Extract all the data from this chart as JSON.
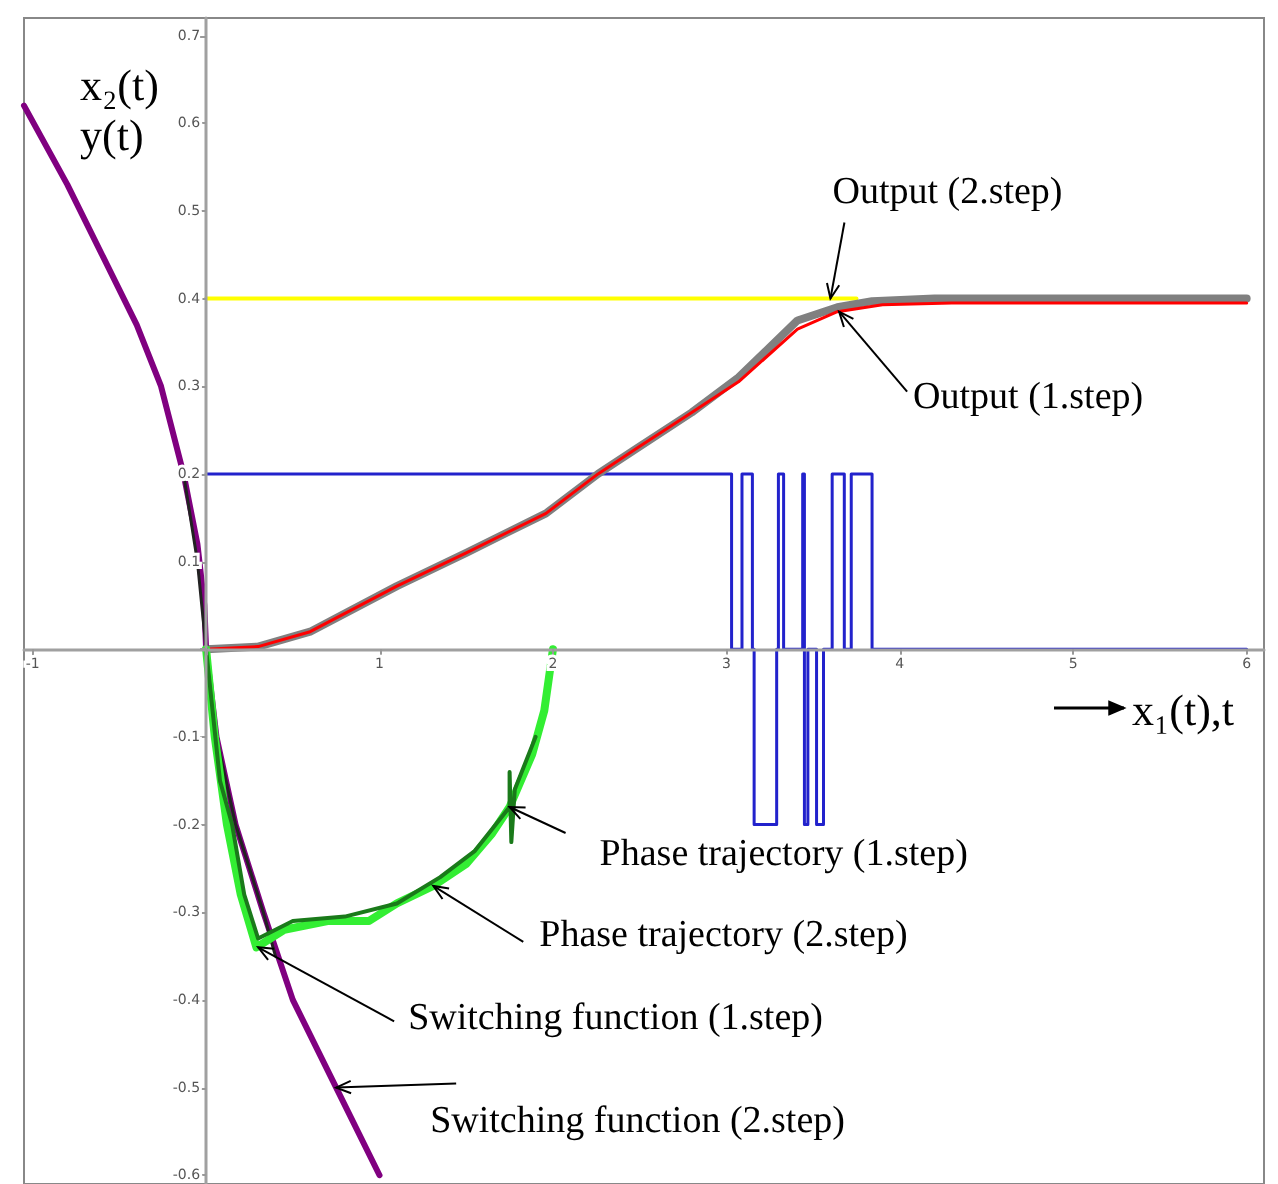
{
  "chart_data": {
    "type": "line",
    "xlabel": "x₁(t),t",
    "ylabel": "x₂(t)\ny(t)",
    "xlim": [
      -1.05,
      6.1
    ],
    "ylim": [
      -0.61,
      0.72
    ],
    "xticks": [
      -1,
      {
        "value": 0,
        "label": null
      },
      1,
      2,
      3,
      4,
      5,
      6
    ],
    "yticks": [
      -0.6,
      -0.5,
      -0.4,
      -0.3,
      -0.2,
      -0.1,
      {
        "value": 0,
        "label": null
      },
      0.1,
      0.2,
      0.3,
      0.4,
      0.5,
      0.6,
      0.7
    ],
    "marker": "none",
    "series": [
      {
        "color": "#ffff00",
        "x": [
          0,
          3.75
        ],
        "values": [
          0.4,
          0.4
        ]
      },
      {
        "color": "#2222cc",
        "x": [
          0,
          3.03,
          3.03,
          3.09,
          3.09,
          3.15,
          3.15,
          3.16,
          3.16,
          3.29,
          3.29,
          3.3,
          3.3,
          3.33,
          3.33,
          3.44,
          3.44,
          3.45,
          3.45,
          3.47,
          3.47,
          3.52,
          3.52,
          3.56,
          3.56,
          3.61,
          3.61,
          3.68,
          3.68,
          3.72,
          3.72,
          3.84,
          3.84,
          6
        ],
        "values": [
          0.2,
          0.2,
          0,
          0,
          0.2,
          0.2,
          0,
          0,
          -0.2,
          -0.2,
          0,
          0,
          0.2,
          0.2,
          0,
          0,
          0.2,
          0.2,
          -0.2,
          -0.2,
          0,
          0,
          -0.2,
          -0.2,
          0,
          0,
          0.2,
          0.2,
          0,
          0,
          0.2,
          0.2,
          0,
          0
        ]
      },
      {
        "color": "#808080",
        "x": [
          0,
          0.3,
          0.6,
          1.1,
          1.5,
          1.96,
          2.26,
          2.49,
          2.8,
          3.07,
          3.41,
          3.64,
          3.84,
          4.2,
          6
        ],
        "values": [
          0,
          0.003,
          0.02,
          0.072,
          0.11,
          0.155,
          0.2,
          0.23,
          0.27,
          0.31,
          0.375,
          0.39,
          0.397,
          0.4,
          0.4
        ]
      },
      {
        "color": "#ff0000",
        "x": [
          0,
          0.3,
          0.6,
          1.1,
          1.5,
          1.96,
          2.26,
          2.49,
          2.8,
          3.07,
          3.41,
          3.64,
          3.9,
          4.3,
          6
        ],
        "values": [
          0,
          0.003,
          0.02,
          0.072,
          0.11,
          0.155,
          0.2,
          0.23,
          0.27,
          0.305,
          0.365,
          0.385,
          0.393,
          0.395,
          0.395
        ]
      },
      {
        "color": "#800080",
        "x": [
          -1.05,
          -0.8,
          -0.6,
          -0.4,
          -0.26,
          -0.13,
          -0.05,
          -0.01,
          0,
          0.06,
          0.17,
          0.33,
          0.5,
          0.75,
          1.0
        ],
        "values": [
          0.62,
          0.53,
          0.45,
          0.37,
          0.3,
          0.2,
          0.12,
          0.05,
          0,
          -0.1,
          -0.2,
          -0.3,
          -0.4,
          -0.5,
          -0.6
        ]
      },
      {
        "color": "#222222",
        "x": [
          -0.13,
          -0.05,
          0,
          0.06,
          0.17,
          0.33,
          0.4
        ],
        "values": [
          0.2,
          0.1,
          0,
          -0.1,
          -0.2,
          -0.3,
          -0.35
        ]
      },
      {
        "color": "#33ee33",
        "x": [
          0,
          0.05,
          0.12,
          0.2,
          0.29,
          0.45,
          0.7,
          0.94,
          1.1,
          1.31,
          1.5,
          1.65,
          1.75,
          1.88,
          1.95,
          2.0
        ],
        "values": [
          0,
          -0.1,
          -0.2,
          -0.28,
          -0.34,
          -0.32,
          -0.31,
          -0.31,
          -0.29,
          -0.27,
          -0.245,
          -0.21,
          -0.18,
          -0.12,
          -0.07,
          0
        ]
      },
      {
        "color": "#1a7a1a",
        "x": [
          0,
          0.08,
          0.15,
          0.22,
          0.3,
          0.5,
          0.8,
          1.1,
          1.35,
          1.55,
          1.75,
          1.75,
          1.76,
          1.78,
          1.9
        ],
        "values": [
          0,
          -0.15,
          -0.2,
          -0.28,
          -0.33,
          -0.31,
          -0.305,
          -0.29,
          -0.26,
          -0.23,
          -0.18,
          -0.14,
          -0.22,
          -0.16,
          -0.1
        ]
      }
    ],
    "annotations": [
      {
        "text": "Output (2.step)",
        "x": 3.6,
        "y": 0.4
      },
      {
        "text": "Output (1.step)",
        "x": 3.65,
        "y": 0.385
      },
      {
        "text": "Phase trajectory (1.step)",
        "x": 1.75,
        "y": -0.18
      },
      {
        "text": "Phase trajectory (2.step)",
        "x": 1.31,
        "y": -0.27
      },
      {
        "text": "Switching function (1.step)",
        "x": 0.3,
        "y": -0.34
      },
      {
        "text": "Switching function (2.step)",
        "x": 0.75,
        "y": -0.5
      }
    ]
  }
}
